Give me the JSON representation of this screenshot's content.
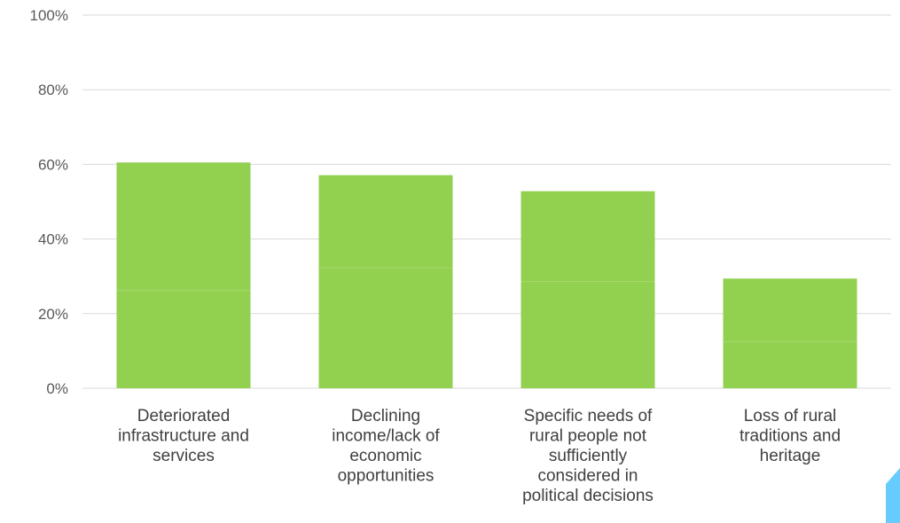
{
  "chart_data": {
    "type": "bar",
    "stacked": true,
    "categories": [
      [
        "Deteriorated",
        "infrastructure and",
        "services"
      ],
      [
        "Declining",
        "income/lack of",
        "economic",
        "opportunities"
      ],
      [
        "Specific needs of",
        "rural people not",
        "sufficiently",
        "considered in",
        "political decisions"
      ],
      [
        "Loss of rural",
        "traditions and",
        "heritage"
      ]
    ],
    "series": [
      {
        "values": [
          26.2,
          32.3,
          28.6,
          12.5
        ],
        "color": "#92d050"
      },
      {
        "values": [
          34.3,
          24.8,
          24.2,
          16.9
        ],
        "color": "#92d050"
      }
    ],
    "totals": [
      60.5,
      57.1,
      52.8,
      29.4
    ],
    "y_ticks": [
      "0%",
      "20%",
      "40%",
      "60%",
      "80%",
      "100%"
    ],
    "ylim": [
      0,
      100
    ],
    "grid": true,
    "gridline_color": "#d9d9d9",
    "accent_shape_color": "#66ccff"
  }
}
